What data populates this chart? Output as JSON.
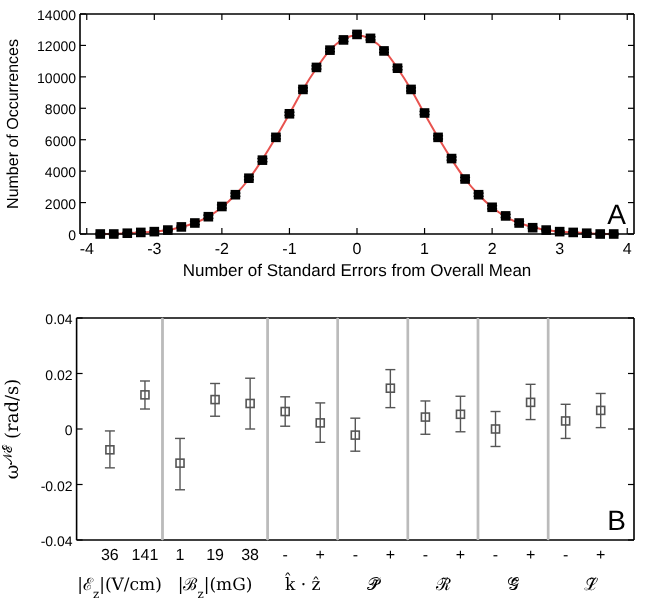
{
  "chart_data": [
    {
      "type": "line",
      "xlabel": "Number of Standard Errors from Overall Mean",
      "ylabel": "Number of Occurrences",
      "annotations": [
        "A"
      ],
      "x": [
        -3.8,
        -3.6,
        -3.4,
        -3.2,
        -3.0,
        -2.8,
        -2.6,
        -2.4,
        -2.2,
        -2.0,
        -1.8,
        -1.6,
        -1.4,
        -1.2,
        -1.0,
        -0.8,
        -0.6,
        -0.4,
        -0.2,
        0,
        0.2,
        0.4,
        0.6,
        0.8,
        1.0,
        1.2,
        1.4,
        1.6,
        1.8,
        2.0,
        2.2,
        2.4,
        2.6,
        2.8,
        3.0,
        3.2,
        3.4,
        3.6,
        3.8
      ],
      "series": [
        {
          "color": "#e8534f",
          "values": [
            0,
            0,
            50,
            100,
            150,
            250,
            450,
            700,
            1100,
            1700,
            2500,
            3500,
            4750,
            6150,
            7650,
            9200,
            10550,
            11700,
            12400,
            12650,
            12400,
            11700,
            10550,
            9200,
            7650,
            6150,
            4750,
            3500,
            2500,
            1700,
            1100,
            700,
            450,
            250,
            150,
            100,
            50,
            0,
            0
          ]
        },
        {
          "type": "scatter",
          "color": "#000000",
          "marker": "square",
          "values": [
            0,
            0,
            50,
            100,
            150,
            250,
            450,
            700,
            1100,
            1750,
            2500,
            3550,
            4700,
            6150,
            7650,
            9200,
            10600,
            11700,
            12350,
            12700,
            12450,
            11650,
            10550,
            9200,
            7700,
            6150,
            4800,
            3500,
            2500,
            1700,
            1150,
            700,
            400,
            250,
            150,
            100,
            50,
            0,
            0
          ],
          "errors": [
            50,
            50,
            50,
            50,
            50,
            50,
            50,
            100,
            100,
            100,
            100,
            100,
            100,
            100,
            100,
            100,
            100,
            100,
            100,
            100,
            100,
            100,
            100,
            100,
            100,
            100,
            100,
            100,
            100,
            100,
            100,
            100,
            50,
            50,
            50,
            50,
            50,
            50,
            50
          ]
        }
      ],
      "xlim": [
        -4.1,
        4.1
      ],
      "ylim": [
        0,
        14000
      ],
      "xticks": [
        -4,
        -3,
        -2,
        -1,
        0,
        1,
        2,
        3,
        4
      ],
      "yticks": [
        0,
        2000,
        4000,
        6000,
        8000,
        10000,
        12000,
        14000
      ],
      "grid": false
    },
    {
      "type": "scatter",
      "ylabel": "ω$^{𝒩ℰ}$ (rad/s)",
      "xlabel": "|ℰ$_{z}$|(V/cm)",
      "categories": [
        "36",
        "141"
      ],
      "series": [
        {
          "color": "#555555",
          "marker": "square",
          "values": [
            -0.0075,
            0.0123
          ],
          "errors": [
            [
              -0.014,
              -0.0007
            ],
            [
              0.0072,
              0.0173
            ]
          ]
        }
      ],
      "ylim": [
        -0.04,
        0.04
      ],
      "yticks": [
        -0.04,
        -0.02,
        0,
        0.02,
        0.04
      ],
      "grid": false
    },
    {
      "type": "scatter",
      "xlabel": "|ℬ$_{z}$|(mG)",
      "categories": [
        "1",
        "19",
        "38"
      ],
      "tick_labels": "x",
      "series": [
        {
          "color": "#555555",
          "marker": "square",
          "values": [
            -0.0123,
            0.0106,
            0.0092
          ],
          "errors": [
            [
              -0.0219,
              -0.0034
            ],
            [
              0.0046,
              0.0164
            ],
            [
              0,
              0.0183
            ]
          ]
        }
      ],
      "ylim": [
        -0.04,
        0.04
      ],
      "yticks": [
        -0.04,
        -0.02,
        0,
        0.02,
        0.04
      ],
      "grid": false
    },
    {
      "type": "scatter",
      "xlabel": "k̂ · ẑ",
      "categories": [
        "-",
        "+"
      ],
      "tick_labels": "x",
      "series": [
        {
          "color": "#555555",
          "marker": "square",
          "values": [
            0.0063,
            0.0022
          ],
          "errors": [
            [
              0.001,
              0.0116
            ],
            [
              -0.0048,
              0.0094
            ]
          ]
        }
      ],
      "ylim": [
        -0.04,
        0.04
      ],
      "yticks": [
        -0.04,
        -0.02,
        0,
        0.02,
        0.04
      ],
      "grid": false
    },
    {
      "type": "scatter",
      "xlabel": "𝒫̃",
      "categories": [
        "-",
        "+"
      ],
      "tick_labels": "x",
      "series": [
        {
          "color": "#555555",
          "marker": "square",
          "values": [
            -0.0022,
            0.0147
          ],
          "errors": [
            [
              -0.008,
              0.0039
            ],
            [
              0.0077,
              0.0214
            ]
          ]
        }
      ],
      "ylim": [
        -0.04,
        0.04
      ],
      "yticks": [
        -0.04,
        -0.02,
        0,
        0.02,
        0.04
      ],
      "grid": false
    },
    {
      "type": "scatter",
      "xlabel": "ℛ̃",
      "categories": [
        "-",
        "+"
      ],
      "tick_labels": "x",
      "series": [
        {
          "color": "#555555",
          "marker": "square",
          "values": [
            0.0043,
            0.0053
          ],
          "errors": [
            [
              -0.0019,
              0.0101
            ],
            [
              -0.001,
              0.0118
            ]
          ]
        }
      ],
      "ylim": [
        -0.04,
        0.04
      ],
      "yticks": [
        -0.04,
        -0.02,
        0,
        0.02,
        0.04
      ],
      "grid": false
    },
    {
      "type": "scatter",
      "xlabel": "𝒢̃",
      "categories": [
        "-",
        "+"
      ],
      "tick_labels": "x",
      "series": [
        {
          "color": "#555555",
          "marker": "square",
          "values": [
            0,
            0.0096
          ],
          "errors": [
            [
              -0.0063,
              0.0063
            ],
            [
              0.0034,
              0.0161
            ]
          ]
        }
      ],
      "ylim": [
        -0.04,
        0.04
      ],
      "yticks": [
        -0.04,
        -0.02,
        0,
        0.02,
        0.04
      ],
      "grid": false
    },
    {
      "type": "scatter",
      "xlabel": "ℒ̃",
      "annotations": [
        "B"
      ],
      "categories": [
        "-",
        "+"
      ],
      "tick_labels": "x",
      "series": [
        {
          "color": "#555555",
          "marker": "square",
          "values": [
            0.0029,
            0.0067
          ],
          "errors": [
            [
              -0.0034,
              0.0089
            ],
            [
              0.0005,
              0.0128
            ]
          ]
        }
      ],
      "ylim": [
        -0.04,
        0.04
      ],
      "yticks": [
        -0.04,
        -0.02,
        0,
        0.02,
        0.04
      ],
      "grid": false
    }
  ]
}
